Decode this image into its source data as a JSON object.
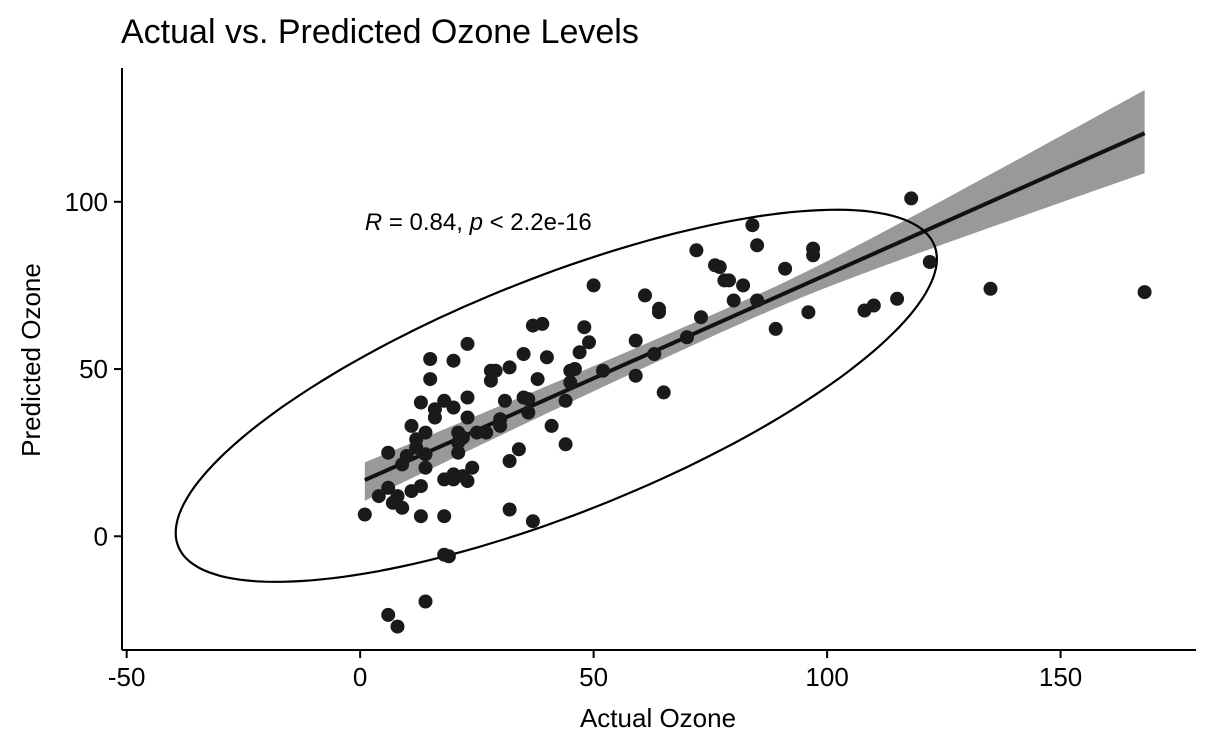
{
  "chart_data": {
    "type": "scatter",
    "title": "Actual vs. Predicted Ozone Levels",
    "xlabel": "Actual Ozone",
    "ylabel": "Predicted Ozone",
    "xlim": [
      -51,
      179
    ],
    "ylim": [
      -34,
      140
    ],
    "x_ticks": [
      -50,
      0,
      50,
      100,
      150
    ],
    "x_tick_labels": [
      "-50",
      "0",
      "50",
      "100",
      "150"
    ],
    "y_ticks": [
      0,
      50,
      100
    ],
    "y_tick_labels": [
      "0",
      "50",
      "100"
    ],
    "grid": false,
    "legend": "none",
    "annotation": {
      "r_symbol": "R",
      "r_text": " = 0.84, ",
      "p_symbol": "p",
      "p_text": " < 2.2e-16",
      "x": 1,
      "y": 94
    },
    "regression": {
      "x": [
        1,
        168
      ],
      "y": [
        16.8,
        120.5
      ],
      "ci_lower": [
        11.5,
        109
      ],
      "ci_upper": [
        21,
        133
      ],
      "ci_mid_width": 3.2,
      "line_color": "#111111",
      "band_color": "#999999"
    },
    "ellipse": {
      "center": [
        42,
        42
      ],
      "semi_major": 93,
      "semi_minor": 33,
      "angle_deg": 31,
      "color": "#000000"
    },
    "point_color": "#1a1a1a",
    "points": [
      [
        1,
        6.5
      ],
      [
        4,
        12
      ],
      [
        6,
        14.5
      ],
      [
        6,
        25
      ],
      [
        7,
        10
      ],
      [
        8,
        12
      ],
      [
        9,
        8.5
      ],
      [
        9,
        21.5
      ],
      [
        10,
        24
      ],
      [
        11,
        13.5
      ],
      [
        11,
        33
      ],
      [
        12,
        26.5
      ],
      [
        12,
        29
      ],
      [
        13,
        6
      ],
      [
        13,
        15
      ],
      [
        13,
        40
      ],
      [
        14,
        20.5
      ],
      [
        14,
        31
      ],
      [
        14,
        24.5
      ],
      [
        15,
        53
      ],
      [
        15,
        47
      ],
      [
        16,
        35.5
      ],
      [
        16,
        38
      ],
      [
        18,
        40.5
      ],
      [
        18,
        17
      ],
      [
        18,
        6
      ],
      [
        18,
        -5.5
      ],
      [
        19,
        -6
      ],
      [
        20,
        52.5
      ],
      [
        20,
        38.5
      ],
      [
        20,
        18.5
      ],
      [
        20,
        17
      ],
      [
        21,
        25
      ],
      [
        21,
        28
      ],
      [
        21,
        31
      ],
      [
        22,
        18
      ],
      [
        22,
        29.5
      ],
      [
        23,
        16.5
      ],
      [
        23,
        57.5
      ],
      [
        23,
        41.5
      ],
      [
        23,
        35.5
      ],
      [
        24,
        20.5
      ],
      [
        25,
        31
      ],
      [
        27,
        31
      ],
      [
        28,
        46.5
      ],
      [
        28,
        49.5
      ],
      [
        29,
        49.5
      ],
      [
        30,
        33
      ],
      [
        30,
        35
      ],
      [
        31,
        40.5
      ],
      [
        32,
        50.5
      ],
      [
        32,
        22.5
      ],
      [
        32,
        8
      ],
      [
        34,
        26
      ],
      [
        35,
        54.5
      ],
      [
        35,
        41.5
      ],
      [
        36,
        37
      ],
      [
        36,
        41
      ],
      [
        37,
        4.5
      ],
      [
        37,
        63
      ],
      [
        38,
        47
      ],
      [
        39,
        63.5
      ],
      [
        40,
        53.5
      ],
      [
        41,
        33
      ],
      [
        44,
        40.5
      ],
      [
        44,
        27.5
      ],
      [
        45,
        46
      ],
      [
        45,
        49.5
      ],
      [
        46,
        50
      ],
      [
        47,
        55
      ],
      [
        48,
        62.5
      ],
      [
        49,
        58
      ],
      [
        50,
        75
      ],
      [
        52,
        49.5
      ],
      [
        59,
        48
      ],
      [
        59,
        58.5
      ],
      [
        61,
        72
      ],
      [
        63,
        54.5
      ],
      [
        64,
        67
      ],
      [
        64,
        68
      ],
      [
        65,
        43
      ],
      [
        70,
        59.5
      ],
      [
        72,
        85.5
      ],
      [
        73,
        65.5
      ],
      [
        76,
        81
      ],
      [
        77,
        80.5
      ],
      [
        78,
        76.5
      ],
      [
        79,
        76.5
      ],
      [
        80,
        70.5
      ],
      [
        82,
        75
      ],
      [
        84,
        93
      ],
      [
        85,
        87
      ],
      [
        85,
        70.5
      ],
      [
        89,
        62
      ],
      [
        91,
        80
      ],
      [
        96,
        67
      ],
      [
        97,
        84
      ],
      [
        97,
        86
      ],
      [
        108,
        67.5
      ],
      [
        110,
        69
      ],
      [
        115,
        71
      ],
      [
        118,
        101
      ],
      [
        122,
        82
      ],
      [
        135,
        74
      ],
      [
        168,
        73
      ],
      [
        6,
        -23.5
      ],
      [
        8,
        -27
      ],
      [
        14,
        -19.5
      ]
    ]
  }
}
